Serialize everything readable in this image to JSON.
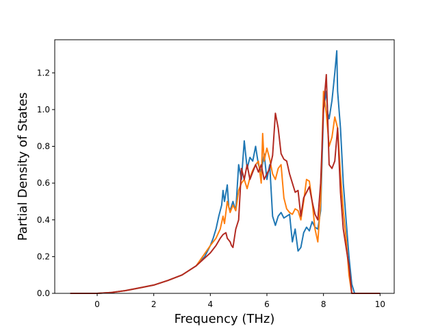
{
  "chart_data": {
    "type": "line",
    "title": "",
    "xlabel": "Frequency (THz)",
    "ylabel": "Partial Density of States",
    "xlim": [
      -1.5,
      10.5
    ],
    "ylim": [
      0.0,
      1.38
    ],
    "x_ticks": [
      0,
      2,
      4,
      6,
      8,
      10
    ],
    "x_tick_labels": [
      "0",
      "2",
      "4",
      "6",
      "8",
      "10"
    ],
    "y_ticks": [
      0.0,
      0.2,
      0.4,
      0.6,
      0.8,
      1.0,
      1.2
    ],
    "y_tick_labels": [
      "0.0",
      "0.2",
      "0.4",
      "0.6",
      "0.8",
      "1.0",
      "1.2"
    ],
    "grid": false,
    "legend": "none",
    "series": [
      {
        "color": "#1f77b4",
        "x": [
          -0.95,
          0.0,
          0.5,
          1.0,
          1.5,
          2.0,
          2.5,
          3.0,
          3.5,
          3.8,
          4.0,
          4.1,
          4.2,
          4.3,
          4.4,
          4.45,
          4.5,
          4.6,
          4.65,
          4.7,
          4.8,
          4.9,
          5.0,
          5.1,
          5.2,
          5.3,
          5.4,
          5.5,
          5.6,
          5.7,
          5.8,
          5.9,
          6.0,
          6.1,
          6.2,
          6.3,
          6.4,
          6.5,
          6.6,
          6.7,
          6.8,
          6.9,
          7.0,
          7.1,
          7.2,
          7.3,
          7.4,
          7.5,
          7.6,
          7.7,
          7.8,
          7.9,
          8.0,
          8.1,
          8.15,
          8.2,
          8.3,
          8.4,
          8.47,
          8.5,
          8.6,
          8.7,
          8.8,
          8.9,
          9.0,
          9.1,
          9.5,
          10.0
        ],
        "y": [
          0.0,
          0.0,
          0.005,
          0.015,
          0.03,
          0.045,
          0.07,
          0.1,
          0.15,
          0.2,
          0.26,
          0.3,
          0.35,
          0.42,
          0.48,
          0.56,
          0.5,
          0.59,
          0.47,
          0.45,
          0.5,
          0.45,
          0.7,
          0.62,
          0.83,
          0.68,
          0.74,
          0.72,
          0.8,
          0.7,
          0.66,
          0.76,
          0.62,
          0.7,
          0.42,
          0.37,
          0.42,
          0.44,
          0.41,
          0.42,
          0.43,
          0.28,
          0.35,
          0.23,
          0.25,
          0.33,
          0.36,
          0.34,
          0.39,
          0.36,
          0.35,
          0.45,
          1.0,
          1.1,
          0.98,
          0.95,
          1.05,
          1.2,
          1.32,
          1.1,
          0.9,
          0.6,
          0.4,
          0.2,
          0.05,
          0.0,
          0.0,
          0.0
        ]
      },
      {
        "color": "#ff7f0e",
        "x": [
          -0.95,
          0.0,
          0.5,
          1.0,
          1.5,
          2.0,
          2.5,
          3.0,
          3.5,
          4.0,
          4.2,
          4.35,
          4.45,
          4.5,
          4.6,
          4.7,
          4.8,
          4.9,
          5.0,
          5.1,
          5.2,
          5.3,
          5.4,
          5.5,
          5.6,
          5.7,
          5.8,
          5.85,
          5.9,
          6.0,
          6.1,
          6.2,
          6.3,
          6.4,
          6.5,
          6.6,
          6.7,
          6.8,
          6.9,
          7.0,
          7.1,
          7.2,
          7.3,
          7.4,
          7.5,
          7.6,
          7.7,
          7.8,
          7.9,
          8.0,
          8.1,
          8.2,
          8.3,
          8.4,
          8.5,
          8.6,
          8.7,
          8.8,
          8.9,
          9.0,
          9.1,
          9.5,
          10.0
        ],
        "y": [
          0.0,
          0.0,
          0.005,
          0.015,
          0.03,
          0.045,
          0.07,
          0.1,
          0.15,
          0.26,
          0.3,
          0.35,
          0.42,
          0.38,
          0.5,
          0.44,
          0.48,
          0.45,
          0.56,
          0.6,
          0.62,
          0.57,
          0.63,
          0.67,
          0.7,
          0.72,
          0.6,
          0.87,
          0.72,
          0.79,
          0.73,
          0.65,
          0.62,
          0.68,
          0.7,
          0.52,
          0.46,
          0.44,
          0.43,
          0.46,
          0.45,
          0.4,
          0.5,
          0.62,
          0.61,
          0.5,
          0.35,
          0.28,
          0.5,
          1.1,
          0.98,
          0.8,
          0.85,
          0.96,
          0.9,
          0.65,
          0.45,
          0.3,
          0.1,
          0.0,
          0.0,
          0.0,
          0.0
        ]
      },
      {
        "color": "#b22a22",
        "x": [
          -0.95,
          0.0,
          0.5,
          1.0,
          1.5,
          2.0,
          2.5,
          3.0,
          3.5,
          4.0,
          4.2,
          4.35,
          4.45,
          4.55,
          4.6,
          4.7,
          4.75,
          4.8,
          4.9,
          5.0,
          5.1,
          5.2,
          5.3,
          5.4,
          5.5,
          5.6,
          5.7,
          5.8,
          5.9,
          6.0,
          6.1,
          6.2,
          6.3,
          6.4,
          6.5,
          6.6,
          6.7,
          6.8,
          6.9,
          7.0,
          7.1,
          7.2,
          7.3,
          7.4,
          7.5,
          7.6,
          7.7,
          7.8,
          7.9,
          8.0,
          8.1,
          8.15,
          8.2,
          8.3,
          8.4,
          8.5,
          8.6,
          8.7,
          8.8,
          8.9,
          9.0,
          9.1,
          9.5,
          10.0
        ],
        "y": [
          0.0,
          0.0,
          0.005,
          0.015,
          0.03,
          0.045,
          0.07,
          0.1,
          0.15,
          0.22,
          0.26,
          0.3,
          0.32,
          0.33,
          0.3,
          0.28,
          0.26,
          0.25,
          0.35,
          0.4,
          0.68,
          0.62,
          0.7,
          0.62,
          0.66,
          0.7,
          0.66,
          0.7,
          0.62,
          0.65,
          0.68,
          0.75,
          0.98,
          0.9,
          0.76,
          0.73,
          0.72,
          0.65,
          0.6,
          0.55,
          0.56,
          0.42,
          0.52,
          0.55,
          0.58,
          0.5,
          0.43,
          0.4,
          0.6,
          1.0,
          1.19,
          0.95,
          0.7,
          0.68,
          0.72,
          0.9,
          0.55,
          0.35,
          0.25,
          0.15,
          0.0,
          0.0,
          0.0,
          0.0
        ]
      }
    ]
  }
}
